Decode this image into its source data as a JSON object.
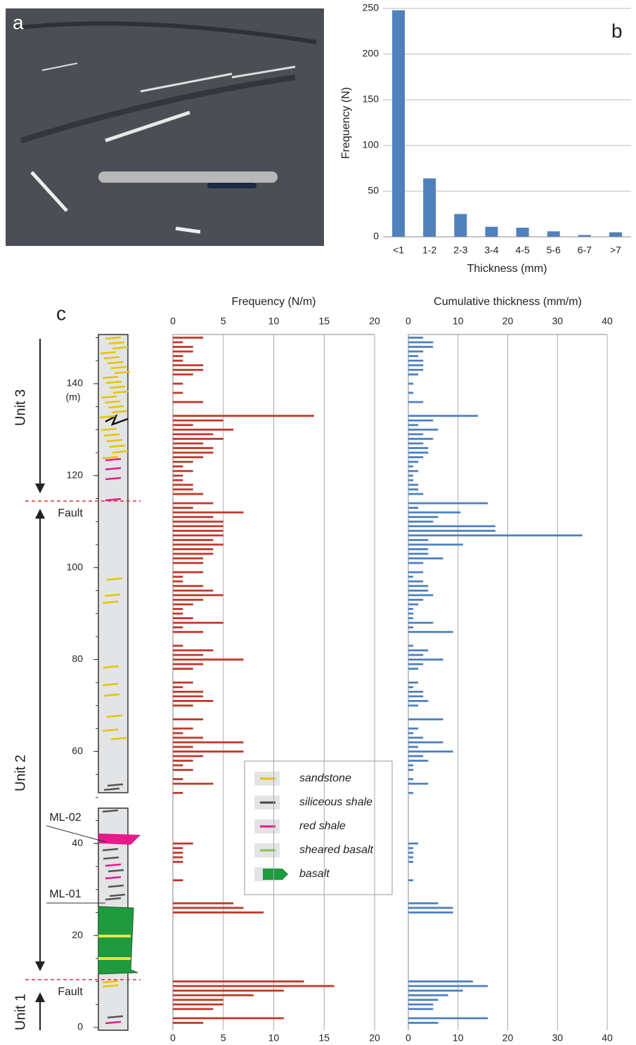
{
  "panel_a": {
    "label": "a"
  },
  "chart_data": [
    {
      "type": "bar",
      "label": "b",
      "categories": [
        "<1",
        "1-2",
        "2-3",
        "3-4",
        "4-5",
        "5-6",
        "6-7",
        ">7"
      ],
      "values": [
        248,
        64,
        25,
        11,
        10,
        6,
        2,
        5
      ],
      "color": "#4f81bd",
      "ylim": [
        0,
        250
      ],
      "yticks": [
        0,
        50,
        100,
        150,
        200,
        250
      ],
      "grid": true,
      "y_label": "Frequency (N)",
      "x_label": "Thickness (mm)"
    },
    {
      "type": "hbar",
      "title": "Frequency (N/m)",
      "color": "#c0392b",
      "grid": true,
      "xlim": [
        0,
        20
      ],
      "xticks": [
        0,
        5,
        10,
        15,
        20
      ],
      "ylim": [
        0,
        150
      ],
      "y": [
        150,
        149,
        148,
        147,
        146,
        145,
        144,
        143,
        142,
        140,
        138,
        136,
        133,
        132,
        131,
        130,
        129,
        128,
        127,
        126,
        125,
        124,
        123,
        122,
        121,
        120,
        119,
        118,
        117,
        116,
        114,
        113,
        112,
        111,
        110,
        109,
        108,
        107,
        106,
        105,
        104,
        103,
        102,
        101,
        99,
        98,
        97,
        96,
        95,
        94,
        93,
        92,
        91,
        90,
        89,
        88,
        87,
        86,
        83,
        82,
        81,
        80,
        79,
        78,
        75,
        74,
        73,
        72,
        71,
        70,
        67,
        65,
        64,
        63,
        62,
        61,
        60,
        59,
        58,
        57,
        56,
        54,
        53,
        51,
        40,
        39,
        38,
        37,
        36,
        32,
        27,
        26,
        25,
        10,
        9,
        8,
        7,
        6,
        5,
        4,
        2,
        1
      ],
      "values": [
        3,
        1,
        2,
        2,
        1,
        1,
        3,
        3,
        2,
        1,
        1,
        3,
        14,
        5,
        2,
        6,
        4,
        5,
        3,
        4,
        4,
        3,
        2,
        1,
        2,
        1,
        1,
        2,
        2,
        3,
        4,
        2,
        7,
        4,
        5,
        5,
        5,
        5,
        4,
        5,
        4,
        4,
        3,
        3,
        3,
        1,
        1,
        3,
        4,
        5,
        3,
        2,
        1,
        1,
        2,
        5,
        1,
        3,
        1,
        4,
        3,
        7,
        3,
        2,
        2,
        1,
        3,
        3,
        4,
        2,
        3,
        2,
        1,
        3,
        7,
        2,
        7,
        3,
        2,
        1,
        2,
        1,
        4,
        1,
        2,
        1,
        1,
        1,
        1,
        1,
        6,
        7,
        9,
        13,
        16,
        11,
        8,
        5,
        5,
        4,
        11,
        3
      ]
    },
    {
      "type": "hbar",
      "title": "Cumulative thickness (mm/m)",
      "color": "#4f81bd",
      "grid": true,
      "xlim": [
        0,
        40
      ],
      "xticks": [
        0,
        10,
        20,
        30,
        40
      ],
      "ylim": [
        0,
        150
      ],
      "y": [
        150,
        149,
        148,
        147,
        146,
        145,
        144,
        143,
        142,
        140,
        138,
        136,
        133,
        132,
        131,
        130,
        129,
        128,
        127,
        126,
        125,
        124,
        123,
        122,
        121,
        120,
        119,
        118,
        117,
        116,
        114,
        113,
        112,
        111,
        110,
        109,
        108,
        107,
        106,
        105,
        104,
        103,
        102,
        101,
        99,
        98,
        97,
        96,
        95,
        94,
        93,
        92,
        91,
        90,
        89,
        88,
        87,
        86,
        83,
        82,
        81,
        80,
        79,
        78,
        75,
        74,
        73,
        72,
        71,
        70,
        67,
        65,
        64,
        63,
        62,
        61,
        60,
        59,
        58,
        57,
        56,
        54,
        53,
        51,
        40,
        39,
        38,
        37,
        36,
        32,
        27,
        26,
        25,
        10,
        9,
        8,
        7,
        6,
        5,
        4,
        2,
        1
      ],
      "values": [
        3,
        5,
        5,
        3,
        2,
        3,
        3,
        3,
        2,
        1,
        1,
        3,
        14,
        5,
        2,
        6,
        3,
        5,
        3,
        4,
        4,
        3,
        2,
        1,
        2,
        1,
        1,
        2,
        2,
        3,
        16,
        2,
        10.5,
        6,
        5,
        17.5,
        17.5,
        35,
        4,
        11,
        4,
        4,
        7,
        3,
        3,
        1,
        3,
        4,
        4,
        5,
        3,
        2,
        1,
        1,
        1,
        5,
        1,
        9,
        1,
        4,
        3,
        7,
        3,
        2,
        2,
        1,
        3,
        3,
        4,
        2,
        7,
        2,
        1,
        3,
        7,
        2,
        9,
        3,
        4,
        1,
        1,
        1,
        4,
        1,
        2,
        1,
        1,
        1,
        1,
        1,
        6,
        9,
        9,
        13,
        16,
        11,
        8,
        6,
        5,
        5,
        16,
        6
      ]
    }
  ],
  "column": {
    "label": "c",
    "ylim": [
      0,
      150
    ],
    "depth_ticks": [
      0,
      20,
      40,
      60,
      80,
      100,
      120,
      140
    ],
    "depth_unit": "(m)",
    "units": [
      "Unit 3",
      "Unit 2",
      "Unit 1"
    ],
    "faults": [
      "Fault",
      "Fault"
    ],
    "samples": [
      "ML-02",
      "ML-01"
    ],
    "legend": [
      "sandstone",
      "siliceous shale",
      "red shale",
      "sheared basalt",
      "basalt"
    ]
  }
}
